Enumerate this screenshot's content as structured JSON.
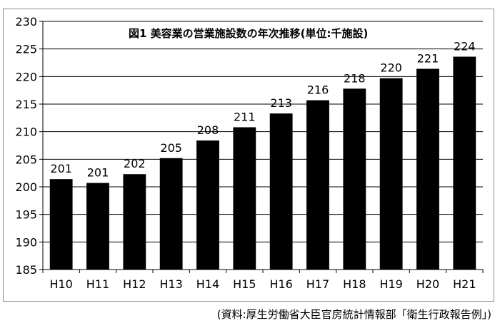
{
  "chart_data": {
    "type": "bar",
    "title": "図1 美容業の営業施設数の年次推移(単位:千施設)",
    "categories": [
      "H10",
      "H11",
      "H12",
      "H13",
      "H14",
      "H15",
      "H16",
      "H17",
      "H18",
      "H19",
      "H20",
      "H21"
    ],
    "values": [
      201.4,
      200.7,
      202.3,
      205.2,
      208.4,
      210.8,
      213.3,
      215.7,
      217.8,
      219.7,
      221.4,
      223.6
    ],
    "data_labels": [
      "201",
      "201",
      "202",
      "205",
      "208",
      "211",
      "213",
      "216",
      "218",
      "220",
      "221",
      "224"
    ],
    "ylim": [
      185,
      230
    ],
    "yticks": [
      185,
      190,
      195,
      200,
      205,
      210,
      215,
      220,
      225,
      230
    ],
    "xlabel": "",
    "ylabel": "",
    "grid": true,
    "bar_color": "#000000"
  },
  "source_note": "(資料:厚生労働省大臣官房統計情報部「衛生行政報告例」)"
}
